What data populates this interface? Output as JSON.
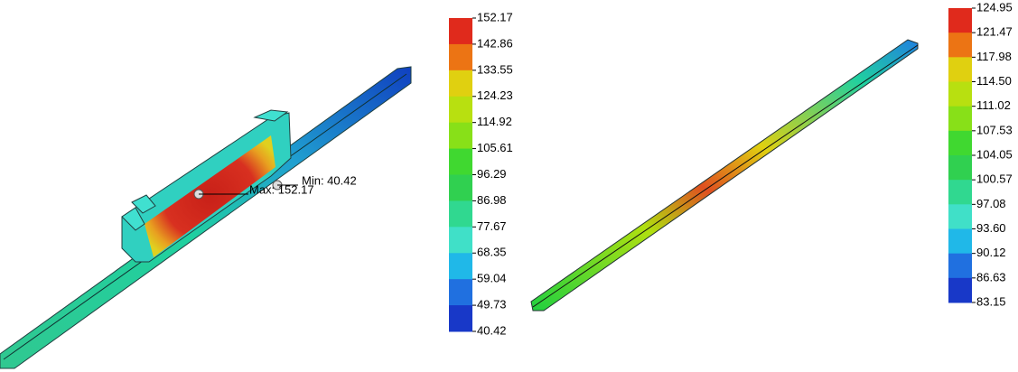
{
  "left_legend": {
    "labels": [
      "152.17",
      "142.86",
      "133.55",
      "124.23",
      "114.92",
      "105.61",
      "96.29",
      "86.98",
      "77.67",
      "68.35",
      "59.04",
      "49.73",
      "40.42"
    ]
  },
  "annotations": {
    "max": "Max: 152.17",
    "min": "Min: 40.42"
  },
  "right_legend": {
    "labels": [
      "124.95",
      "121.47",
      "117.98",
      "114.50",
      "111.02",
      "107.53",
      "104.05",
      "100.57",
      "97.08",
      "93.60",
      "90.12",
      "86.63",
      "83.15"
    ]
  }
}
